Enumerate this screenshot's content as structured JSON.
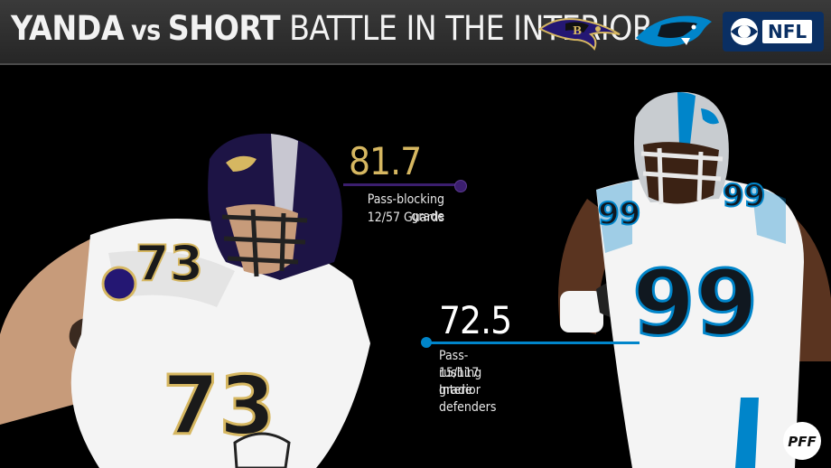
{
  "header": {
    "title_player1": "YANDA",
    "title_vs": "vs",
    "title_player2": "SHORT",
    "title_rest": "BATTLE IN THE INTERIOR",
    "logos": [
      "ravens-logo",
      "panthers-logo",
      "cbs-eye-logo",
      "nfl-logo"
    ],
    "nfl_text": "NFL"
  },
  "players": {
    "left": {
      "jersey_number": "73",
      "team_color": "#241773"
    },
    "right": {
      "jersey_number": "99",
      "team_color": "#0085ca"
    }
  },
  "stats": [
    {
      "value": "81.7",
      "label": "Pass-blocking grade",
      "rank": "12/57 Guards",
      "value_color": "#d6b761",
      "accent": "#3b1e6e"
    },
    {
      "value": "72.5",
      "label": "Pass-rushing grade",
      "rank": "15/117 Interior defenders",
      "value_color": "#ffffff",
      "accent": "#0085ca"
    }
  ],
  "footer": {
    "brand": "PFF"
  },
  "colors": {
    "background": "#000000",
    "header": "#2e2e2e",
    "gold": "#d6b761",
    "purple": "#3b1e6e",
    "blue": "#0085ca"
  }
}
